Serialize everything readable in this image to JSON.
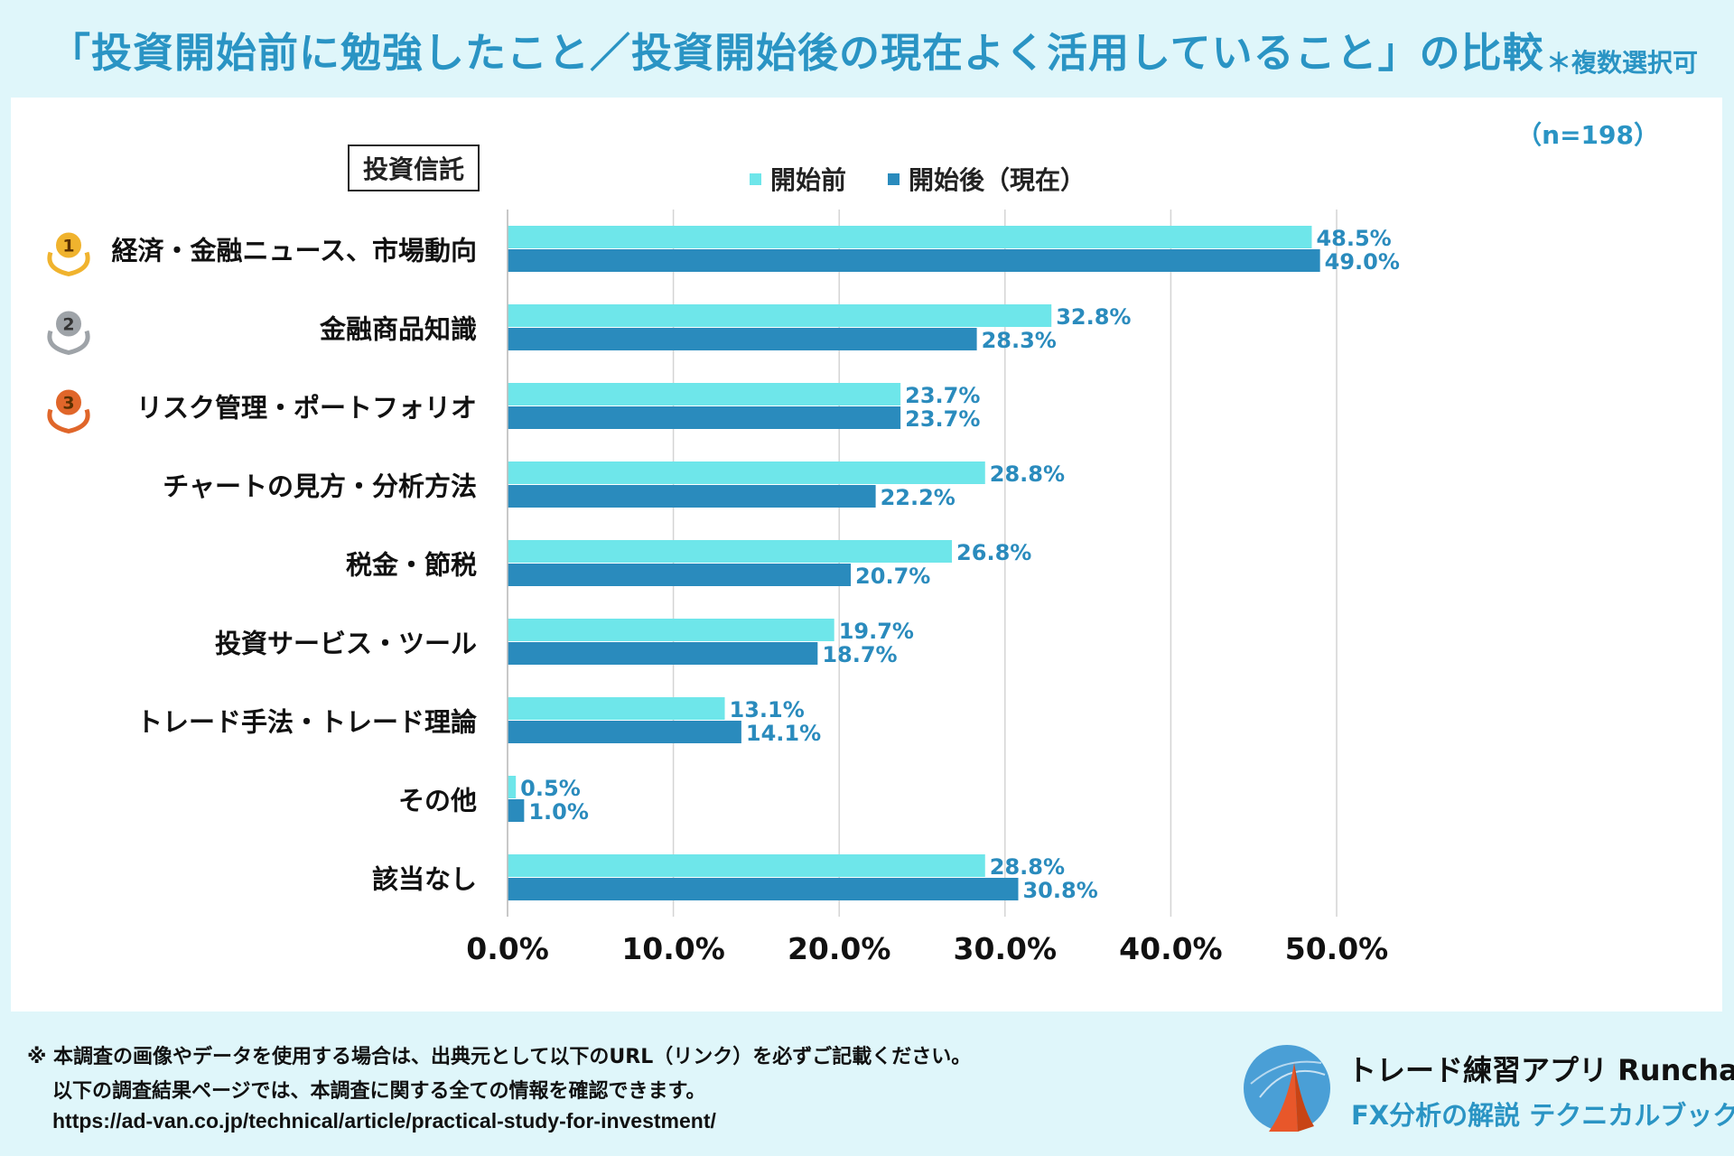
{
  "header": {
    "title": "「投資開始前に勉強したこと／投資開始後の現在よく活用していること」の比較",
    "note": "＊複数選択可"
  },
  "sample_size": "（n=198）",
  "category_label": "投資信託",
  "legend": {
    "before": "開始前",
    "after": "開始後（現在）"
  },
  "colors": {
    "before": "#6ee6ea",
    "after": "#2a8bbd",
    "title": "#2a94c4",
    "value_label": "#2a8bbd",
    "gold": "#f0b32e",
    "silver": "#9ea3a8",
    "bronze": "#e0662a"
  },
  "chart_data": {
    "type": "bar",
    "orientation": "horizontal",
    "title": "「投資開始前に勉強したこと／投資開始後の現在よく活用していること」の比較",
    "categories": [
      "経済・金融ニュース、市場動向",
      "金融商品知識",
      "リスク管理・ポートフォリオ",
      "チャートの見方・分析方法",
      "税金・節税",
      "投資サービス・ツール",
      "トレード手法・トレード理論",
      "その他",
      "該当なし"
    ],
    "ranks": [
      "1",
      "2",
      "3",
      "",
      "",
      "",
      "",
      "",
      ""
    ],
    "series": [
      {
        "name": "開始前",
        "values": [
          48.5,
          32.8,
          23.7,
          28.8,
          26.8,
          19.7,
          13.1,
          0.5,
          28.8
        ],
        "labels": [
          "48.5%",
          "32.8%",
          "23.7%",
          "28.8%",
          "26.8%",
          "19.7%",
          "13.1%",
          "0.5%",
          "28.8%"
        ]
      },
      {
        "name": "開始後（現在）",
        "values": [
          49.0,
          28.3,
          23.7,
          22.2,
          20.7,
          18.7,
          14.1,
          1.0,
          30.8
        ],
        "labels": [
          "49.0%",
          "28.3%",
          "23.7%",
          "22.2%",
          "20.7%",
          "18.7%",
          "14.1%",
          "1.0%",
          "30.8%"
        ]
      }
    ],
    "xlim": [
      0,
      50
    ],
    "x_ticks": [
      0,
      10,
      20,
      30,
      40,
      50
    ],
    "x_tick_labels": [
      "0.0%",
      "10.0%",
      "20.0%",
      "30.0%",
      "40.0%",
      "50.0%"
    ],
    "xlabel": "",
    "ylabel": "",
    "grid": true,
    "legend_position": "top"
  },
  "footer": {
    "note_line1": "※ 本調査の画像やデータを使用する場合は、出典元として以下のURL（リンク）を必ずご記載ください。",
    "note_line2": "以下の調査結果ページでは、本調査に関する全ての情報を確認できます。",
    "url": "https://ad-van.co.jp/technical/article/practical-study-for-investment/"
  },
  "brand": {
    "name": "トレード練習アプリ  Runcha",
    "sub": "FX分析の解説  テクニカルブック"
  }
}
